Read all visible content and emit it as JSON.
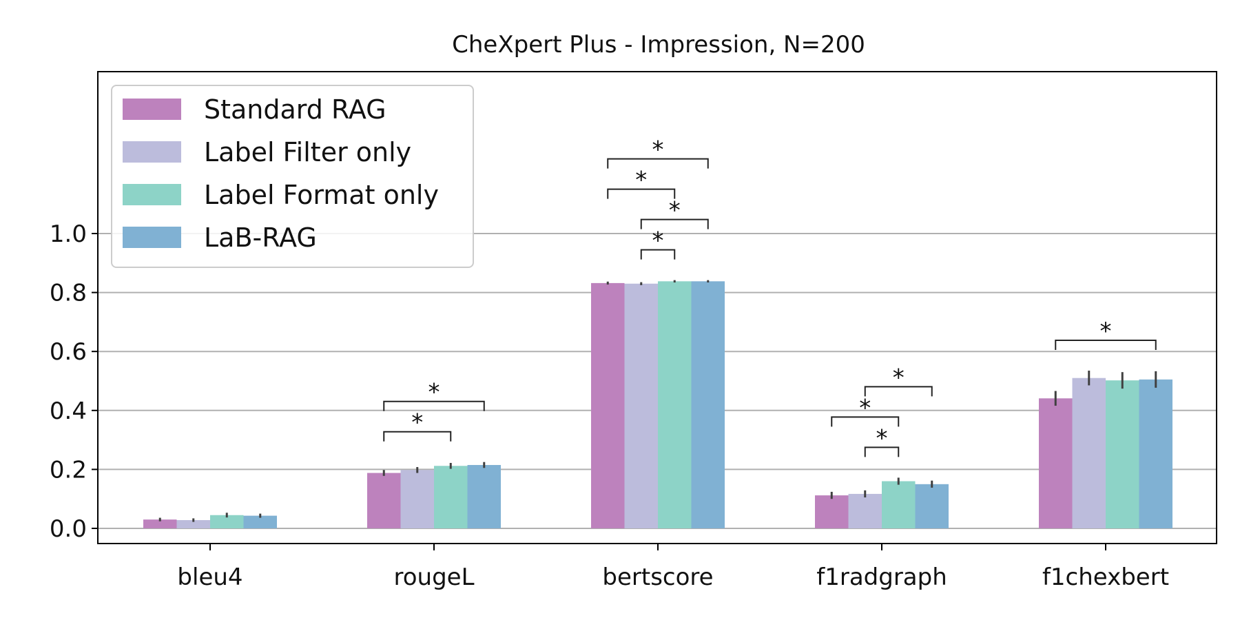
{
  "chart_data": {
    "type": "bar",
    "title": "CheXpert Plus - Impression, N=200",
    "xlabel": "",
    "ylabel": "",
    "categories": [
      "bleu4",
      "rougeL",
      "bertscore",
      "f1radgraph",
      "f1chexbert"
    ],
    "series": [
      {
        "name": "Standard RAG",
        "color": "#bd82bd",
        "values": [
          0.03,
          0.188,
          0.832,
          0.112,
          0.441
        ],
        "errors": [
          0.006,
          0.01,
          0.005,
          0.012,
          0.025
        ]
      },
      {
        "name": "Label Filter only",
        "color": "#bcbcdc",
        "values": [
          0.028,
          0.198,
          0.83,
          0.117,
          0.51
        ],
        "errors": [
          0.006,
          0.01,
          0.005,
          0.012,
          0.025
        ]
      },
      {
        "name": "Label Format only",
        "color": "#8dd3c7",
        "values": [
          0.045,
          0.212,
          0.838,
          0.16,
          0.502
        ],
        "errors": [
          0.008,
          0.01,
          0.004,
          0.012,
          0.028
        ]
      },
      {
        "name": "LaB-RAG",
        "color": "#80b1d3",
        "values": [
          0.043,
          0.215,
          0.838,
          0.15,
          0.505
        ],
        "errors": [
          0.007,
          0.01,
          0.004,
          0.012,
          0.028
        ]
      }
    ],
    "significance": [
      {
        "category": "rougeL",
        "from": 0,
        "to": 3,
        "label": "*"
      },
      {
        "category": "rougeL",
        "from": 0,
        "to": 2,
        "label": "*"
      },
      {
        "category": "bertscore",
        "from": 0,
        "to": 3,
        "label": "*"
      },
      {
        "category": "bertscore",
        "from": 0,
        "to": 2,
        "label": "*"
      },
      {
        "category": "bertscore",
        "from": 1,
        "to": 3,
        "label": "*"
      },
      {
        "category": "bertscore",
        "from": 1,
        "to": 2,
        "label": "*"
      },
      {
        "category": "f1radgraph",
        "from": 1,
        "to": 3,
        "label": "*"
      },
      {
        "category": "f1radgraph",
        "from": 0,
        "to": 2,
        "label": "*"
      },
      {
        "category": "f1radgraph",
        "from": 1,
        "to": 2,
        "label": "*"
      },
      {
        "category": "f1chexbert",
        "from": 0,
        "to": 3,
        "label": "*"
      }
    ],
    "yticks": [
      "0.0",
      "0.2",
      "0.4",
      "0.6",
      "0.8",
      "1.0"
    ],
    "ylim": [
      -0.05,
      1.6
    ],
    "grid": "horizontal",
    "legend_position": "upper-left"
  }
}
